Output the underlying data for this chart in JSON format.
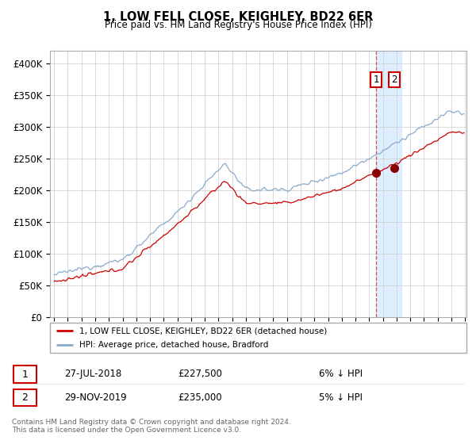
{
  "title": "1, LOW FELL CLOSE, KEIGHLEY, BD22 6ER",
  "subtitle": "Price paid vs. HM Land Registry's House Price Index (HPI)",
  "legend_label_1": "1, LOW FELL CLOSE, KEIGHLEY, BD22 6ER (detached house)",
  "legend_label_2": "HPI: Average price, detached house, Bradford",
  "transaction_1": {
    "label": "1",
    "date": "27-JUL-2018",
    "price": 227500,
    "pct": "6%",
    "direction": "↓"
  },
  "transaction_2": {
    "label": "2",
    "date": "29-NOV-2019",
    "price": 235000,
    "pct": "5%",
    "direction": "↓"
  },
  "footer": "Contains HM Land Registry data © Crown copyright and database right 2024.\nThis data is licensed under the Open Government Licence v3.0.",
  "color_red": "#cc0000",
  "color_blue": "#88aacc",
  "color_highlight": "#ddeeff",
  "ylim": [
    0,
    420000
  ],
  "yticks": [
    0,
    50000,
    100000,
    150000,
    200000,
    250000,
    300000,
    350000,
    400000
  ],
  "start_year": 1995,
  "end_year": 2025
}
